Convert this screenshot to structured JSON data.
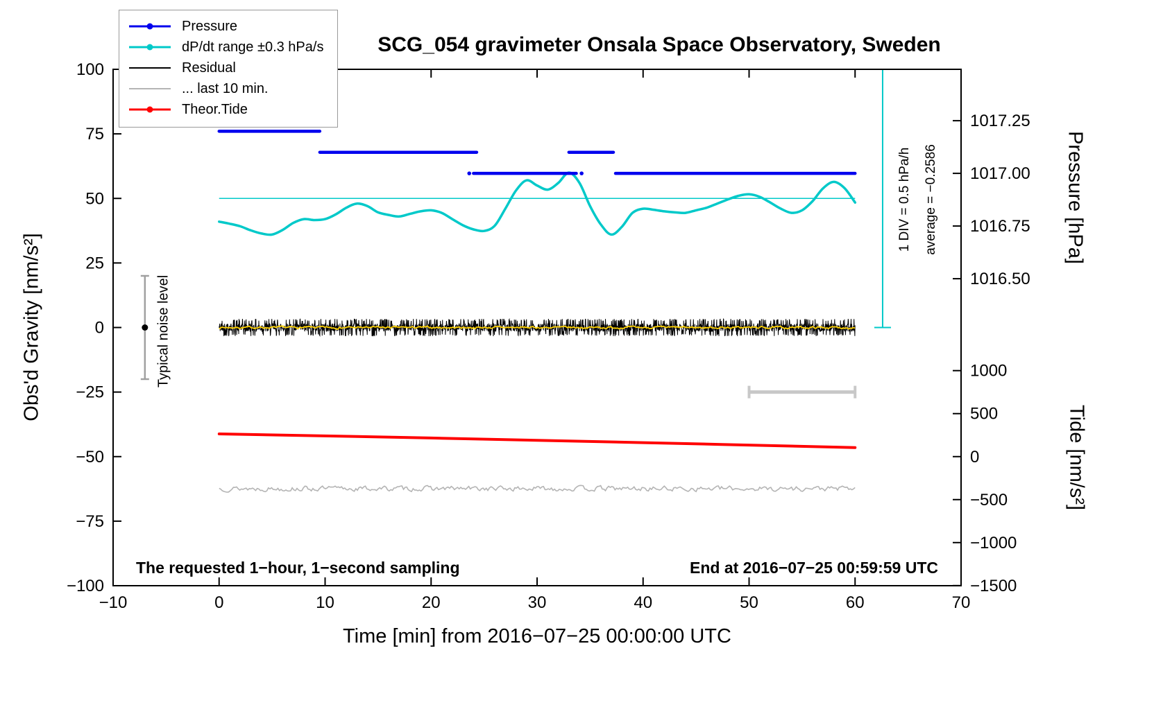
{
  "chart_data": {
    "type": "line",
    "title": "SCG_054 gravimeter Onsala Space Observatory, Sweden",
    "xlabel": "Time [min] from 2016−07−25 00:00:00 UTC",
    "ylabel_left": "Obs'd Gravity [nm/s²]",
    "ylabel_right_top": "Pressure [hPa]",
    "ylabel_right_bottom": "Tide [nm/s²]",
    "xlim": [
      -10,
      70
    ],
    "ylim_gravity": [
      -100,
      100
    ],
    "grid": false,
    "legend_position": "top-left",
    "x_ticks": [
      {
        "v": -10,
        "label": "−10"
      },
      {
        "v": 0,
        "label": "0"
      },
      {
        "v": 10,
        "label": "10"
      },
      {
        "v": 20,
        "label": "20"
      },
      {
        "v": 30,
        "label": "30"
      },
      {
        "v": 40,
        "label": "40"
      },
      {
        "v": 50,
        "label": "50"
      },
      {
        "v": 60,
        "label": "60"
      },
      {
        "v": 70,
        "label": "70"
      }
    ],
    "gravity_ticks": [
      {
        "v": -100,
        "label": "−100"
      },
      {
        "v": -75,
        "label": "−75"
      },
      {
        "v": -50,
        "label": "−50"
      },
      {
        "v": -25,
        "label": "−25"
      },
      {
        "v": 0,
        "label": "0"
      },
      {
        "v": 25,
        "label": "25"
      },
      {
        "v": 50,
        "label": "50"
      },
      {
        "v": 75,
        "label": "75"
      },
      {
        "v": 100,
        "label": "100"
      }
    ],
    "pressure_ticks": [
      {
        "v": 1017.25,
        "label": "1017.25"
      },
      {
        "v": 1017.0,
        "label": "1017.00"
      },
      {
        "v": 1016.75,
        "label": "1016.75"
      },
      {
        "v": 1016.5,
        "label": "1016.50"
      }
    ],
    "tide_ticks": [
      {
        "v": 1000,
        "label": "1000"
      },
      {
        "v": 500,
        "label": "500"
      },
      {
        "v": 0,
        "label": "0"
      },
      {
        "v": -500,
        "label": "−500"
      },
      {
        "v": -1000,
        "label": "−1000"
      },
      {
        "v": -1500,
        "label": "−1500"
      }
    ],
    "pressure_axis": {
      "gravity_at_1017": 59.7,
      "gravity_per_hpa": 81.6
    },
    "tide_axis": {
      "gravity_at_0": -50,
      "gravity_per_500": 16.65
    },
    "series": {
      "pressure_segments": [
        {
          "t0": 0.0,
          "t1": 9.5,
          "hpa": 1017.2
        },
        {
          "t0": 9.5,
          "t1": 24.3,
          "hpa": 1017.1
        },
        {
          "t0": 24.0,
          "t1": 33.7,
          "hpa": 1017.0
        },
        {
          "t0": 33.0,
          "t1": 37.2,
          "hpa": 1017.1
        },
        {
          "t0": 37.4,
          "t1": 60.0,
          "hpa": 1017.0
        }
      ],
      "pressure_dots": [
        {
          "t": 23.6,
          "hpa": 1017.0
        },
        {
          "t": 34.2,
          "hpa": 1017.0
        }
      ],
      "dpdt_curve": {
        "color": "#00C9C9",
        "points": [
          [
            0,
            41
          ],
          [
            1,
            40.2
          ],
          [
            2,
            39.2
          ],
          [
            3,
            37.6
          ],
          [
            4,
            36.4
          ],
          [
            5,
            36
          ],
          [
            6,
            37.8
          ],
          [
            7,
            40.5
          ],
          [
            8,
            42
          ],
          [
            9,
            41.6
          ],
          [
            10,
            42
          ],
          [
            11,
            43.8
          ],
          [
            12,
            46.4
          ],
          [
            13,
            48
          ],
          [
            14,
            47
          ],
          [
            15,
            44.6
          ],
          [
            16,
            43.6
          ],
          [
            17,
            43
          ],
          [
            18,
            44
          ],
          [
            19,
            45
          ],
          [
            20,
            45.4
          ],
          [
            21,
            44.4
          ],
          [
            22,
            42
          ],
          [
            23,
            39.6
          ],
          [
            24,
            38
          ],
          [
            25,
            37.4
          ],
          [
            26,
            39.4
          ],
          [
            27,
            46
          ],
          [
            28,
            53
          ],
          [
            29,
            57
          ],
          [
            30,
            55
          ],
          [
            31,
            53.4
          ],
          [
            32,
            56
          ],
          [
            33,
            60
          ],
          [
            34,
            56
          ],
          [
            35,
            47
          ],
          [
            36,
            40
          ],
          [
            37,
            36
          ],
          [
            38,
            39
          ],
          [
            39,
            44.4
          ],
          [
            40,
            46
          ],
          [
            41,
            45.6
          ],
          [
            42,
            45
          ],
          [
            43,
            44.6
          ],
          [
            44,
            44.4
          ],
          [
            45,
            45.4
          ],
          [
            46,
            46.4
          ],
          [
            47,
            48
          ],
          [
            48,
            49.6
          ],
          [
            49,
            51
          ],
          [
            50,
            51.6
          ],
          [
            51,
            50.6
          ],
          [
            52,
            48.4
          ],
          [
            53,
            46
          ],
          [
            54,
            44.4
          ],
          [
            55,
            45.4
          ],
          [
            56,
            49
          ],
          [
            57,
            54
          ],
          [
            58,
            56.4
          ],
          [
            59,
            54
          ],
          [
            60,
            48.4
          ]
        ]
      },
      "dpdt_reference_line": {
        "g": 50,
        "t0": 0,
        "t1": 60
      },
      "residual": {
        "y_mean": 0,
        "amplitude": 2.1,
        "t0": 0,
        "t1": 60,
        "color": "#000000"
      },
      "residual_smooth": {
        "y_mean": 0,
        "amplitude": 0.9,
        "color": "#FFD200"
      },
      "last10": {
        "y_mean": -62.4,
        "amplitude": 1.5,
        "t0": 0,
        "t1": 60,
        "color": "#B4B4B4"
      },
      "theor_tide": {
        "color": "#FF0000",
        "points": [
          [
            0,
            -41.2
          ],
          [
            20,
            -42.8
          ],
          [
            40,
            -44.6
          ],
          [
            60,
            -46.5
          ]
        ]
      }
    },
    "markers": {
      "noise_level": {
        "t": -7,
        "g": 0,
        "half_range": 20,
        "label": "Typical noise level",
        "bar_color": "#A0A0A0",
        "dot_color": "#000000"
      },
      "gray_span_bar": {
        "t0": 50,
        "t1": 60,
        "g": -25,
        "color": "#C8C8C8"
      },
      "cyan_scale_bar": {
        "t": 62.6,
        "g0": 0,
        "g1": 100,
        "color": "#00C9C9"
      }
    },
    "annotations": {
      "div_note": "1 DIV = 0.5 hPa/h",
      "average_note": "average = −0.2586",
      "bottom_left": "The requested 1−hour, 1−second sampling",
      "bottom_right": "End at 2016−07−25 00:59:59 UTC"
    },
    "legend": {
      "items": [
        {
          "label": "Pressure",
          "color": "#0000EE",
          "marker": true
        },
        {
          "label": "dP/dt range ±0.3 hPa/s",
          "color": "#00C9C9",
          "marker": true
        },
        {
          "label": "Residual",
          "color": "#000000",
          "marker": false
        },
        {
          "label": "... last 10 min.",
          "color": "#B4B4B4",
          "marker": false
        },
        {
          "label": "Theor.Tide",
          "color": "#FF0000",
          "marker": true
        }
      ]
    },
    "colors": {
      "frame": "#000000",
      "background": "#FFFFFF"
    }
  }
}
